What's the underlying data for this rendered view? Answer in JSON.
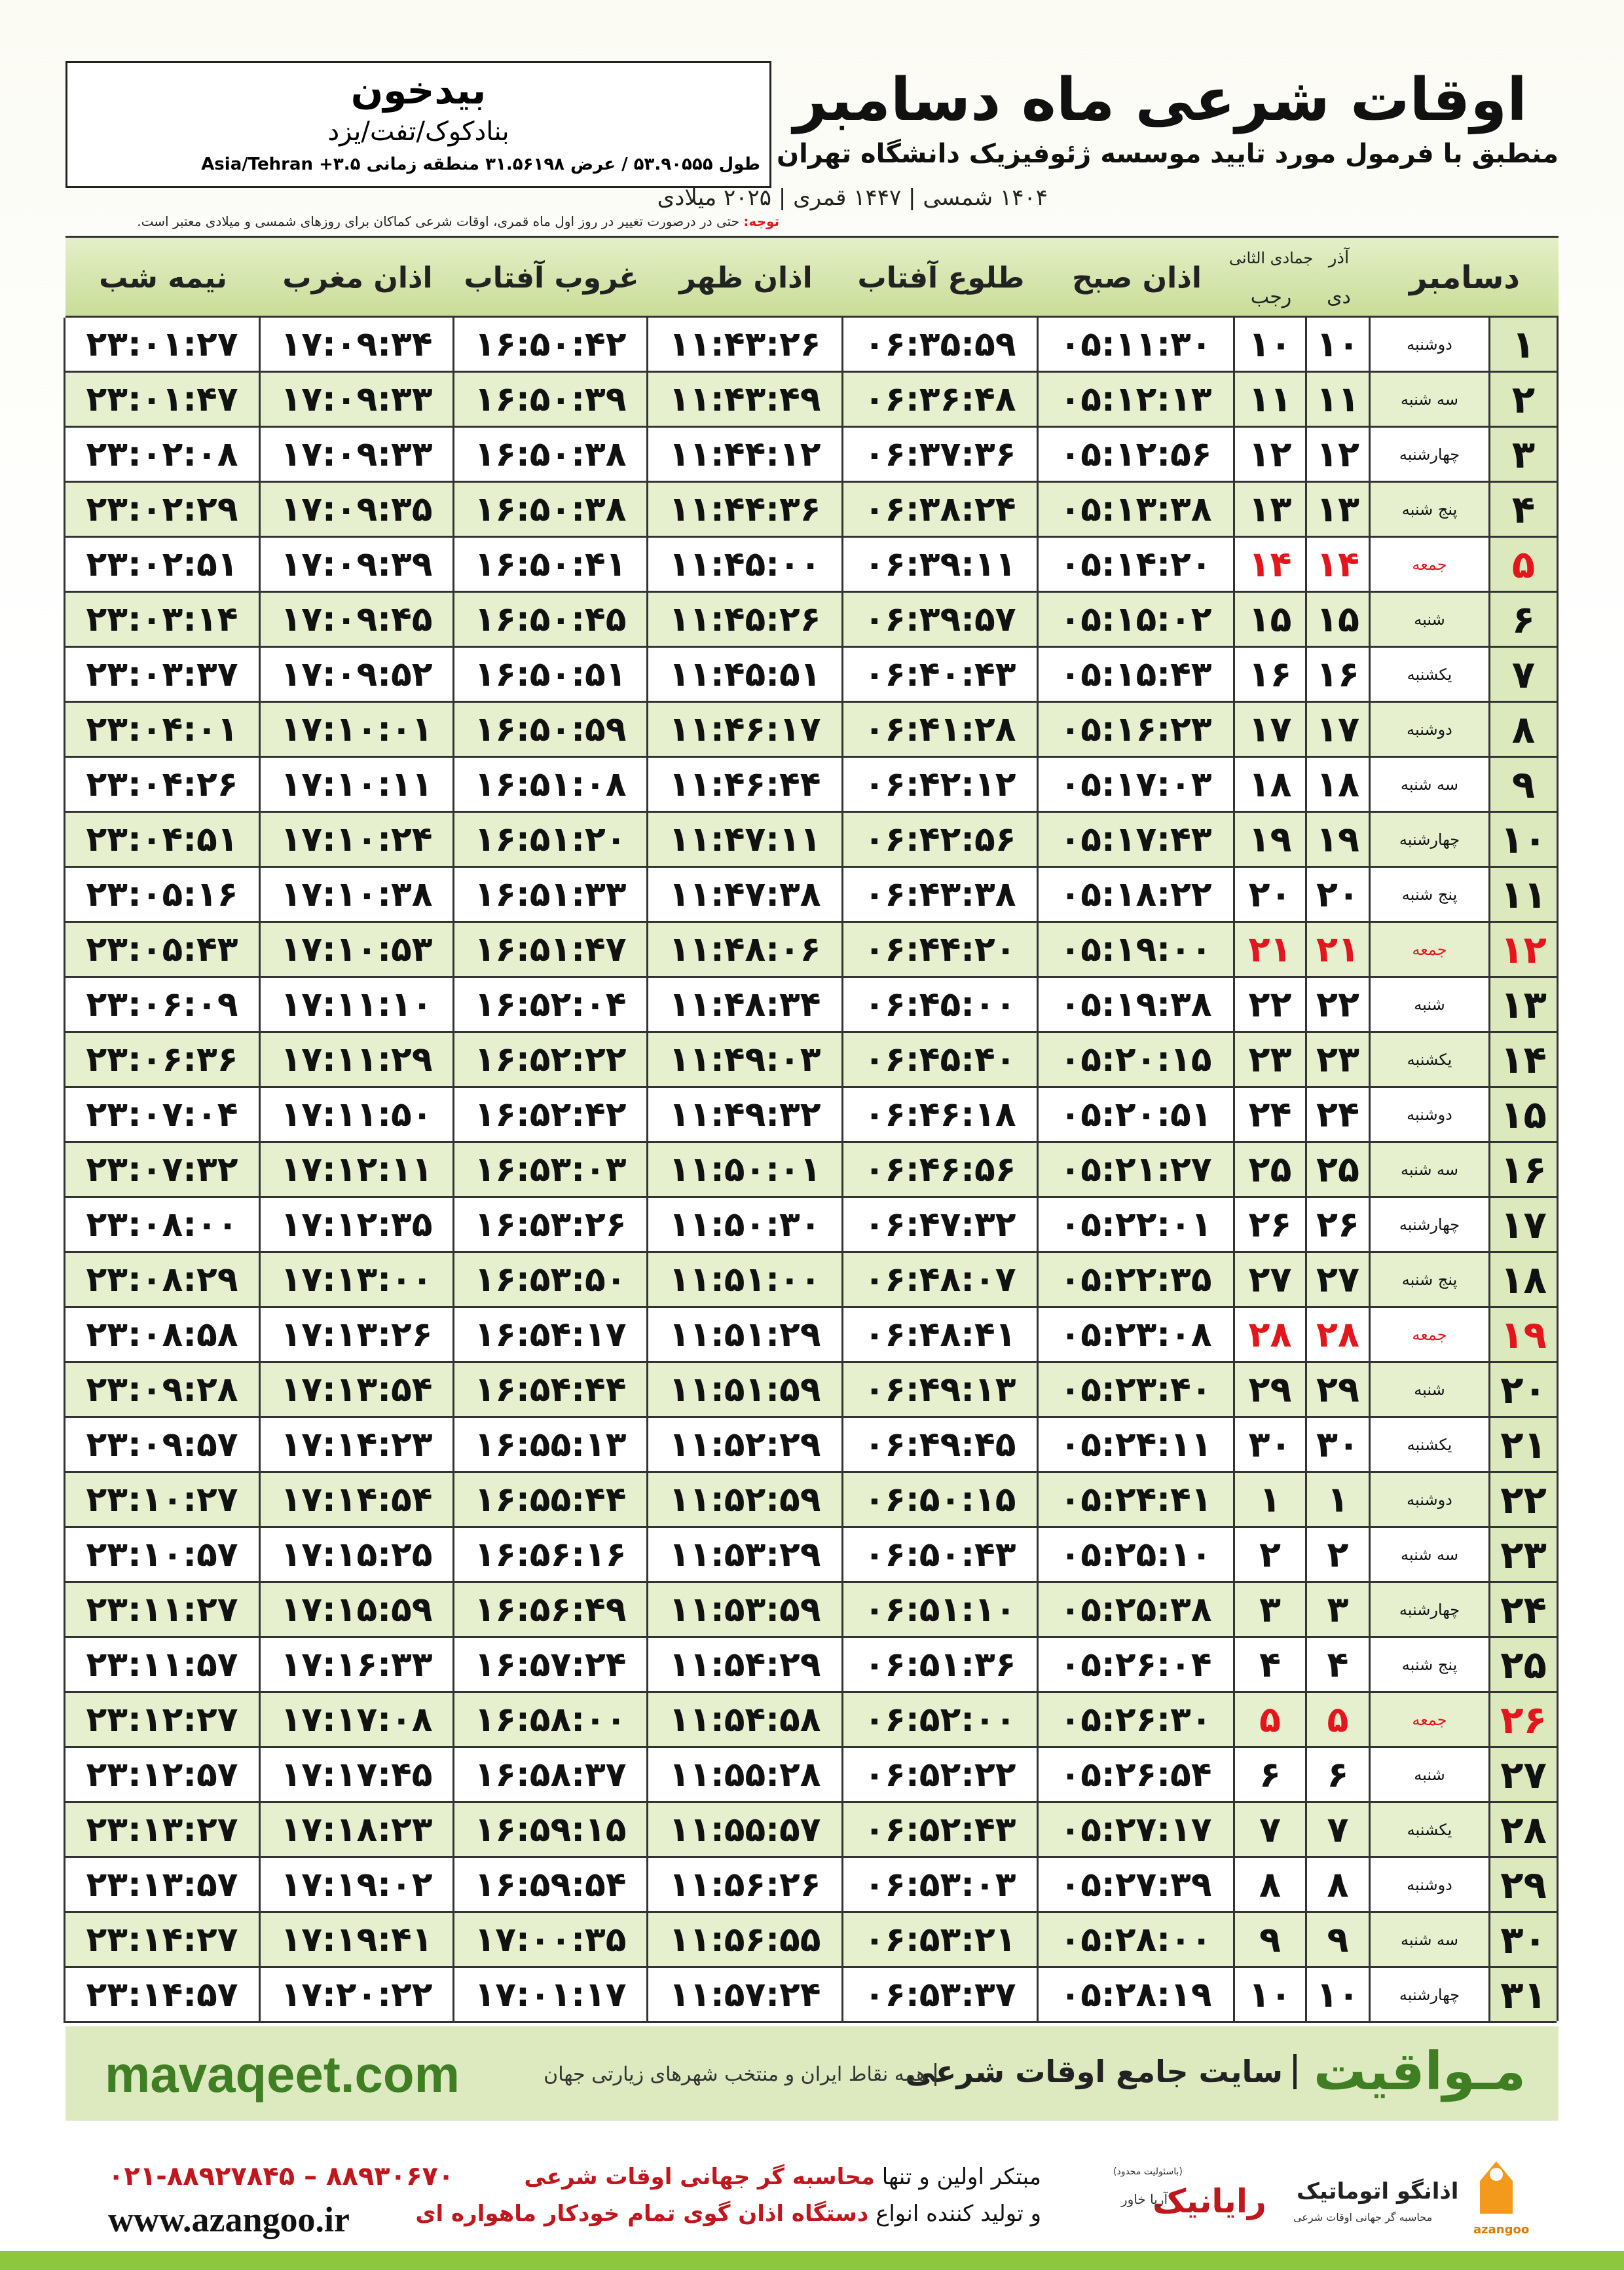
{
  "header": {
    "city": "بیدخون",
    "region": "بنادکوک/تفت/یزد",
    "coords": "طول ۵۳.۹۰۵۵۵ / عرض ۳۱.۵۶۱۹۸ منطقه زمانی ۳.۵+ Asia/Tehran",
    "title": "اوقات شرعی ماه دسامبر",
    "subtitle": "منطبق با فرمول مورد تایید موسسه ژئوفیزیک دانشگاه تهران",
    "dates": "۱۴۰۴ شمسی | ۱۴۴۷ قمری | ۲۰۲۵ میلادی",
    "note_label": "توجه:",
    "note": "حتی در درصورت تغییر در روز اول ماه قمری، اوقات شرعی کماکان برای روزهای شمسی و میلادی معتبر است."
  },
  "table": {
    "columns": {
      "month": "دسامبر",
      "prev_solar": "آذر",
      "solar": "دی",
      "prev_lunar": "جمادی الثانی",
      "lunar": "رجب",
      "fajr": "اذان صبح",
      "sunrise": "طلوع آفتاب",
      "dhuhr": "اذان ظهر",
      "sunset": "غروب آفتاب",
      "maghrib": "اذان مغرب",
      "midnight": "نیمه شب"
    },
    "holiday_rows": [
      4,
      11,
      18,
      25
    ],
    "holiday_color": "#e3161d",
    "rows": [
      [
        "۱",
        "دوشنبه",
        "۱۰",
        "۱۰",
        "۰۵:۱۱:۳۰",
        "۰۶:۳۵:۵۹",
        "۱۱:۴۳:۲۶",
        "۱۶:۵۰:۴۲",
        "۱۷:۰۹:۳۴",
        "۲۳:۰۱:۲۷"
      ],
      [
        "۲",
        "سه شنبه",
        "۱۱",
        "۱۱",
        "۰۵:۱۲:۱۳",
        "۰۶:۳۶:۴۸",
        "۱۱:۴۳:۴۹",
        "۱۶:۵۰:۳۹",
        "۱۷:۰۹:۳۳",
        "۲۳:۰۱:۴۷"
      ],
      [
        "۳",
        "چهارشنبه",
        "۱۲",
        "۱۲",
        "۰۵:۱۲:۵۶",
        "۰۶:۳۷:۳۶",
        "۱۱:۴۴:۱۲",
        "۱۶:۵۰:۳۸",
        "۱۷:۰۹:۳۳",
        "۲۳:۰۲:۰۸"
      ],
      [
        "۴",
        "پنج شنبه",
        "۱۳",
        "۱۳",
        "۰۵:۱۳:۳۸",
        "۰۶:۳۸:۲۴",
        "۱۱:۴۴:۳۶",
        "۱۶:۵۰:۳۸",
        "۱۷:۰۹:۳۵",
        "۲۳:۰۲:۲۹"
      ],
      [
        "۵",
        "جمعه",
        "۱۴",
        "۱۴",
        "۰۵:۱۴:۲۰",
        "۰۶:۳۹:۱۱",
        "۱۱:۴۵:۰۰",
        "۱۶:۵۰:۴۱",
        "۱۷:۰۹:۳۹",
        "۲۳:۰۲:۵۱"
      ],
      [
        "۶",
        "شنبه",
        "۱۵",
        "۱۵",
        "۰۵:۱۵:۰۲",
        "۰۶:۳۹:۵۷",
        "۱۱:۴۵:۲۶",
        "۱۶:۵۰:۴۵",
        "۱۷:۰۹:۴۵",
        "۲۳:۰۳:۱۴"
      ],
      [
        "۷",
        "یکشنبه",
        "۱۶",
        "۱۶",
        "۰۵:۱۵:۴۳",
        "۰۶:۴۰:۴۳",
        "۱۱:۴۵:۵۱",
        "۱۶:۵۰:۵۱",
        "۱۷:۰۹:۵۲",
        "۲۳:۰۳:۳۷"
      ],
      [
        "۸",
        "دوشنبه",
        "۱۷",
        "۱۷",
        "۰۵:۱۶:۲۳",
        "۰۶:۴۱:۲۸",
        "۱۱:۴۶:۱۷",
        "۱۶:۵۰:۵۹",
        "۱۷:۱۰:۰۱",
        "۲۳:۰۴:۰۱"
      ],
      [
        "۹",
        "سه شنبه",
        "۱۸",
        "۱۸",
        "۰۵:۱۷:۰۳",
        "۰۶:۴۲:۱۲",
        "۱۱:۴۶:۴۴",
        "۱۶:۵۱:۰۸",
        "۱۷:۱۰:۱۱",
        "۲۳:۰۴:۲۶"
      ],
      [
        "۱۰",
        "چهارشنبه",
        "۱۹",
        "۱۹",
        "۰۵:۱۷:۴۳",
        "۰۶:۴۲:۵۶",
        "۱۱:۴۷:۱۱",
        "۱۶:۵۱:۲۰",
        "۱۷:۱۰:۲۴",
        "۲۳:۰۴:۵۱"
      ],
      [
        "۱۱",
        "پنج شنبه",
        "۲۰",
        "۲۰",
        "۰۵:۱۸:۲۲",
        "۰۶:۴۳:۳۸",
        "۱۱:۴۷:۳۸",
        "۱۶:۵۱:۳۳",
        "۱۷:۱۰:۳۸",
        "۲۳:۰۵:۱۶"
      ],
      [
        "۱۲",
        "جمعه",
        "۲۱",
        "۲۱",
        "۰۵:۱۹:۰۰",
        "۰۶:۴۴:۲۰",
        "۱۱:۴۸:۰۶",
        "۱۶:۵۱:۴۷",
        "۱۷:۱۰:۵۳",
        "۲۳:۰۵:۴۳"
      ],
      [
        "۱۳",
        "شنبه",
        "۲۲",
        "۲۲",
        "۰۵:۱۹:۳۸",
        "۰۶:۴۵:۰۰",
        "۱۱:۴۸:۳۴",
        "۱۶:۵۲:۰۴",
        "۱۷:۱۱:۱۰",
        "۲۳:۰۶:۰۹"
      ],
      [
        "۱۴",
        "یکشنبه",
        "۲۳",
        "۲۳",
        "۰۵:۲۰:۱۵",
        "۰۶:۴۵:۴۰",
        "۱۱:۴۹:۰۳",
        "۱۶:۵۲:۲۲",
        "۱۷:۱۱:۲۹",
        "۲۳:۰۶:۳۶"
      ],
      [
        "۱۵",
        "دوشنبه",
        "۲۴",
        "۲۴",
        "۰۵:۲۰:۵۱",
        "۰۶:۴۶:۱۸",
        "۱۱:۴۹:۳۲",
        "۱۶:۵۲:۴۲",
        "۱۷:۱۱:۵۰",
        "۲۳:۰۷:۰۴"
      ],
      [
        "۱۶",
        "سه شنبه",
        "۲۵",
        "۲۵",
        "۰۵:۲۱:۲۷",
        "۰۶:۴۶:۵۶",
        "۱۱:۵۰:۰۱",
        "۱۶:۵۳:۰۳",
        "۱۷:۱۲:۱۱",
        "۲۳:۰۷:۳۲"
      ],
      [
        "۱۷",
        "چهارشنبه",
        "۲۶",
        "۲۶",
        "۰۵:۲۲:۰۱",
        "۰۶:۴۷:۳۲",
        "۱۱:۵۰:۳۰",
        "۱۶:۵۳:۲۶",
        "۱۷:۱۲:۳۵",
        "۲۳:۰۸:۰۰"
      ],
      [
        "۱۸",
        "پنج شنبه",
        "۲۷",
        "۲۷",
        "۰۵:۲۲:۳۵",
        "۰۶:۴۸:۰۷",
        "۱۱:۵۱:۰۰",
        "۱۶:۵۳:۵۰",
        "۱۷:۱۳:۰۰",
        "۲۳:۰۸:۲۹"
      ],
      [
        "۱۹",
        "جمعه",
        "۲۸",
        "۲۸",
        "۰۵:۲۳:۰۸",
        "۰۶:۴۸:۴۱",
        "۱۱:۵۱:۲۹",
        "۱۶:۵۴:۱۷",
        "۱۷:۱۳:۲۶",
        "۲۳:۰۸:۵۸"
      ],
      [
        "۲۰",
        "شنبه",
        "۲۹",
        "۲۹",
        "۰۵:۲۳:۴۰",
        "۰۶:۴۹:۱۳",
        "۱۱:۵۱:۵۹",
        "۱۶:۵۴:۴۴",
        "۱۷:۱۳:۵۴",
        "۲۳:۰۹:۲۸"
      ],
      [
        "۲۱",
        "یکشنبه",
        "۳۰",
        "۳۰",
        "۰۵:۲۴:۱۱",
        "۰۶:۴۹:۴۵",
        "۱۱:۵۲:۲۹",
        "۱۶:۵۵:۱۳",
        "۱۷:۱۴:۲۳",
        "۲۳:۰۹:۵۷"
      ],
      [
        "۲۲",
        "دوشنبه",
        "۱",
        "۱",
        "۰۵:۲۴:۴۱",
        "۰۶:۵۰:۱۵",
        "۱۱:۵۲:۵۹",
        "۱۶:۵۵:۴۴",
        "۱۷:۱۴:۵۴",
        "۲۳:۱۰:۲۷"
      ],
      [
        "۲۳",
        "سه شنبه",
        "۲",
        "۲",
        "۰۵:۲۵:۱۰",
        "۰۶:۵۰:۴۳",
        "۱۱:۵۳:۲۹",
        "۱۶:۵۶:۱۶",
        "۱۷:۱۵:۲۵",
        "۲۳:۱۰:۵۷"
      ],
      [
        "۲۴",
        "چهارشنبه",
        "۳",
        "۳",
        "۰۵:۲۵:۳۸",
        "۰۶:۵۱:۱۰",
        "۱۱:۵۳:۵۹",
        "۱۶:۵۶:۴۹",
        "۱۷:۱۵:۵۹",
        "۲۳:۱۱:۲۷"
      ],
      [
        "۲۵",
        "پنج شنبه",
        "۴",
        "۴",
        "۰۵:۲۶:۰۴",
        "۰۶:۵۱:۳۶",
        "۱۱:۵۴:۲۹",
        "۱۶:۵۷:۲۴",
        "۱۷:۱۶:۳۳",
        "۲۳:۱۱:۵۷"
      ],
      [
        "۲۶",
        "جمعه",
        "۵",
        "۵",
        "۰۵:۲۶:۳۰",
        "۰۶:۵۲:۰۰",
        "۱۱:۵۴:۵۸",
        "۱۶:۵۸:۰۰",
        "۱۷:۱۷:۰۸",
        "۲۳:۱۲:۲۷"
      ],
      [
        "۲۷",
        "شنبه",
        "۶",
        "۶",
        "۰۵:۲۶:۵۴",
        "۰۶:۵۲:۲۲",
        "۱۱:۵۵:۲۸",
        "۱۶:۵۸:۳۷",
        "۱۷:۱۷:۴۵",
        "۲۳:۱۲:۵۷"
      ],
      [
        "۲۸",
        "یکشنبه",
        "۷",
        "۷",
        "۰۵:۲۷:۱۷",
        "۰۶:۵۲:۴۳",
        "۱۱:۵۵:۵۷",
        "۱۶:۵۹:۱۵",
        "۱۷:۱۸:۲۳",
        "۲۳:۱۳:۲۷"
      ],
      [
        "۲۹",
        "دوشنبه",
        "۸",
        "۸",
        "۰۵:۲۷:۳۹",
        "۰۶:۵۳:۰۳",
        "۱۱:۵۶:۲۶",
        "۱۶:۵۹:۵۴",
        "۱۷:۱۹:۰۲",
        "۲۳:۱۳:۵۷"
      ],
      [
        "۳۰",
        "سه شنبه",
        "۹",
        "۹",
        "۰۵:۲۸:۰۰",
        "۰۶:۵۳:۲۱",
        "۱۱:۵۶:۵۵",
        "۱۷:۰۰:۳۵",
        "۱۷:۱۹:۴۱",
        "۲۳:۱۴:۲۷"
      ],
      [
        "۳۱",
        "چهارشنبه",
        "۱۰",
        "۱۰",
        "۰۵:۲۸:۱۹",
        "۰۶:۵۳:۳۷",
        "۱۱:۵۷:۲۴",
        "۱۷:۰۱:۱۷",
        "۱۷:۲۰:۲۲",
        "۲۳:۱۴:۵۷"
      ]
    ]
  },
  "banner": {
    "brand": "مـواقیت",
    "tagline": "سایت جامع اوقات شرعی",
    "scope": "همه نقاط ایران و منتخب شهرهای زیارتی جهان",
    "url": "mavaqeet.com"
  },
  "footer": {
    "phones": "۰۲۱-۸۸۹۲۷۸۴۵ – ۸۸۹۳۰۶۷۰",
    "website": "www.azangoo.ir",
    "line1_start": "مبتکر اولین و تنها",
    "line1_highlight": "محاسبه گر جهانی اوقات شرعی",
    "line2_start": "و تولید کننده انواع",
    "line2_highlight": "دستگاه اذان گوی تمام خودکار ماهواره ای",
    "logo1_note": "(باسئولیت محدود)",
    "logo1_name": "رایانیک",
    "logo1_sub": "آریا خاور",
    "logo2_name": "اذانگو اتوماتیک",
    "logo2_sub": "محاسبه گر جهانی اوقات شرعی",
    "logo2_latin": "azangoo"
  }
}
